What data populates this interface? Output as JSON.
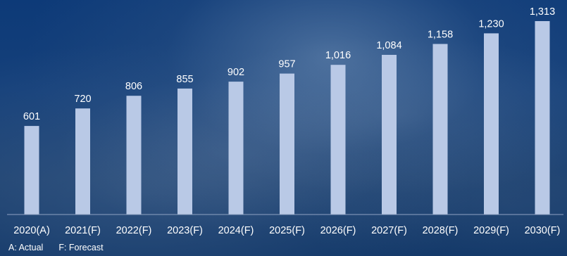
{
  "chart_data": {
    "type": "bar",
    "categories": [
      "2020(A)",
      "2021(F)",
      "2022(F)",
      "2023(F)",
      "2024(F)",
      "2025(F)",
      "2026(F)",
      "2027(F)",
      "2028(F)",
      "2029(F)",
      "2030(F)"
    ],
    "values": [
      601,
      720,
      806,
      855,
      902,
      957,
      1016,
      1084,
      1158,
      1230,
      1313
    ],
    "value_labels": [
      "601",
      "720",
      "806",
      "855",
      "902",
      "957",
      "1,016",
      "1,084",
      "1,158",
      "1,230",
      "1,313"
    ],
    "ylim": [
      0,
      1313
    ],
    "bar_color": "#b9c9e6",
    "axis_color": "#8fa2c2",
    "text_color": "#ffffff",
    "grid": false
  },
  "legend": {
    "actual": "A: Actual",
    "forecast": "F: Forecast"
  }
}
